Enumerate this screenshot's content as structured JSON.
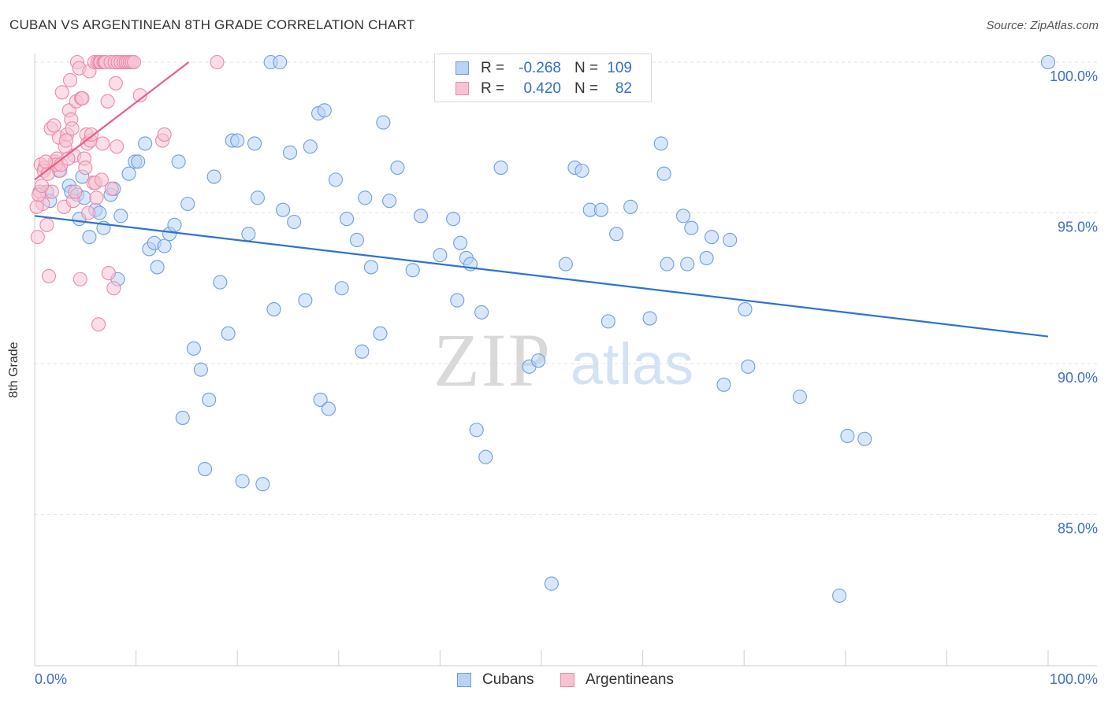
{
  "title": "CUBAN VS ARGENTINEAN 8TH GRADE CORRELATION CHART",
  "source": "Source: ZipAtlas.com",
  "watermark": {
    "zip": "ZIP",
    "atlas": "atlas"
  },
  "legend_box": {
    "rows": [
      {
        "r_label": "R =",
        "r_value": "-0.268",
        "n_label": "N =",
        "n_value": "109",
        "fill": "#b9d3f5",
        "stroke": "#6d9fe0"
      },
      {
        "r_label": "R =",
        "r_value": "0.420",
        "n_label": "N =",
        "n_value": "82",
        "fill": "#f7c3d3",
        "stroke": "#ec8aa7"
      }
    ]
  },
  "bottom_legend": [
    {
      "label": "Cubans",
      "fill": "#b9d3f5",
      "stroke": "#6d9fe0"
    },
    {
      "label": "Argentineans",
      "fill": "#f7c3d3",
      "stroke": "#ec8aa7"
    }
  ],
  "chart_data": {
    "type": "scatter",
    "title": "CUBAN VS ARGENTINEAN 8TH GRADE CORRELATION CHART",
    "xlabel": "",
    "ylabel": "8th Grade",
    "xlim": [
      0,
      100
    ],
    "ylim": [
      80.5,
      100.9
    ],
    "x_tick_labels": [
      "0.0%",
      "100.0%"
    ],
    "y_ticks": [
      100,
      95,
      90,
      85
    ],
    "y_tick_labels": [
      "100.0%",
      "95.0%",
      "90.0%",
      "85.0%"
    ],
    "grid": true,
    "colors": {
      "blue": "#3a7bd5",
      "pink": "#e8608a",
      "tick_text": "#3a6fc7"
    },
    "series": [
      {
        "name": "Cubans",
        "color": "#6d9fe0",
        "fill": "#b9d3f5",
        "trend_color": "#2e72d2",
        "trend": [
          [
            0,
            94.9
          ],
          [
            100,
            90.9
          ]
        ],
        "points": [
          [
            0.5,
            95.7
          ],
          [
            1.2,
            95.7
          ],
          [
            1.5,
            95.4
          ],
          [
            2.4,
            96.4
          ],
          [
            3.4,
            95.9
          ],
          [
            3.6,
            95.7
          ],
          [
            4.2,
            95.6
          ],
          [
            4.4,
            94.8
          ],
          [
            4.7,
            96.2
          ],
          [
            4.9,
            95.5
          ],
          [
            5.4,
            94.2
          ],
          [
            6.0,
            95.1
          ],
          [
            6.4,
            95.0
          ],
          [
            6.8,
            94.5
          ],
          [
            7.5,
            95.6
          ],
          [
            7.8,
            95.8
          ],
          [
            8.2,
            92.8
          ],
          [
            8.5,
            94.9
          ],
          [
            9.3,
            96.3
          ],
          [
            9.9,
            96.7
          ],
          [
            10.2,
            96.7
          ],
          [
            10.9,
            97.3
          ],
          [
            11.3,
            93.8
          ],
          [
            11.8,
            94.0
          ],
          [
            12.1,
            93.2
          ],
          [
            12.8,
            93.9
          ],
          [
            13.3,
            94.3
          ],
          [
            13.8,
            94.6
          ],
          [
            14.2,
            96.7
          ],
          [
            14.6,
            88.2
          ],
          [
            15.1,
            95.3
          ],
          [
            15.7,
            90.5
          ],
          [
            16.4,
            89.8
          ],
          [
            16.8,
            86.5
          ],
          [
            17.2,
            88.8
          ],
          [
            17.7,
            96.2
          ],
          [
            18.3,
            92.7
          ],
          [
            19.1,
            91.0
          ],
          [
            19.5,
            97.4
          ],
          [
            20.0,
            97.4
          ],
          [
            20.5,
            86.1
          ],
          [
            21.1,
            94.3
          ],
          [
            21.7,
            97.3
          ],
          [
            22.0,
            95.5
          ],
          [
            22.5,
            86.0
          ],
          [
            23.3,
            100.0
          ],
          [
            23.6,
            91.8
          ],
          [
            24.2,
            100.0
          ],
          [
            24.5,
            95.1
          ],
          [
            25.2,
            97.0
          ],
          [
            25.6,
            94.7
          ],
          [
            26.7,
            92.1
          ],
          [
            27.2,
            97.2
          ],
          [
            28.0,
            98.3
          ],
          [
            28.2,
            88.8
          ],
          [
            28.6,
            98.4
          ],
          [
            29.0,
            88.5
          ],
          [
            29.7,
            96.1
          ],
          [
            30.3,
            92.5
          ],
          [
            30.8,
            94.8
          ],
          [
            31.8,
            94.1
          ],
          [
            32.3,
            90.4
          ],
          [
            32.6,
            95.5
          ],
          [
            33.2,
            93.2
          ],
          [
            34.1,
            91.0
          ],
          [
            34.4,
            98.0
          ],
          [
            35.0,
            95.4
          ],
          [
            35.8,
            96.5
          ],
          [
            37.3,
            93.1
          ],
          [
            38.1,
            94.9
          ],
          [
            40.0,
            93.6
          ],
          [
            41.3,
            94.8
          ],
          [
            41.7,
            92.1
          ],
          [
            42.0,
            94.0
          ],
          [
            42.6,
            93.5
          ],
          [
            43.0,
            93.3
          ],
          [
            43.6,
            87.8
          ],
          [
            44.1,
            91.7
          ],
          [
            44.5,
            86.9
          ],
          [
            46.0,
            96.5
          ],
          [
            48.8,
            89.9
          ],
          [
            49.7,
            90.1
          ],
          [
            51.0,
            82.7
          ],
          [
            52.4,
            93.3
          ],
          [
            53.3,
            96.5
          ],
          [
            54.0,
            96.4
          ],
          [
            54.8,
            95.1
          ],
          [
            55.9,
            95.1
          ],
          [
            56.6,
            91.4
          ],
          [
            57.4,
            94.3
          ],
          [
            58.8,
            95.2
          ],
          [
            60.7,
            91.5
          ],
          [
            61.8,
            97.3
          ],
          [
            62.1,
            96.3
          ],
          [
            62.4,
            93.3
          ],
          [
            64.0,
            94.9
          ],
          [
            64.4,
            93.3
          ],
          [
            64.8,
            94.5
          ],
          [
            66.3,
            93.5
          ],
          [
            66.8,
            94.2
          ],
          [
            68.0,
            89.3
          ],
          [
            68.6,
            94.1
          ],
          [
            70.1,
            91.8
          ],
          [
            70.4,
            89.9
          ],
          [
            75.5,
            88.9
          ],
          [
            79.4,
            82.3
          ],
          [
            80.2,
            87.6
          ],
          [
            81.9,
            87.5
          ],
          [
            100.0,
            100.0
          ]
        ]
      },
      {
        "name": "Argentineans",
        "color": "#ec8aa7",
        "fill": "#f7c3d3",
        "trend_color": "#e8608a",
        "trend": [
          [
            0,
            96.1
          ],
          [
            15.2,
            100.0
          ]
        ],
        "points": [
          [
            0.3,
            94.2
          ],
          [
            0.5,
            95.7
          ],
          [
            0.6,
            96.6
          ],
          [
            0.8,
            95.3
          ],
          [
            1.0,
            96.5
          ],
          [
            1.2,
            94.6
          ],
          [
            1.4,
            92.9
          ],
          [
            1.6,
            97.8
          ],
          [
            1.7,
            95.7
          ],
          [
            1.9,
            97.9
          ],
          [
            2.0,
            96.7
          ],
          [
            2.2,
            96.8
          ],
          [
            2.4,
            97.5
          ],
          [
            2.5,
            96.4
          ],
          [
            2.7,
            99.0
          ],
          [
            2.9,
            95.2
          ],
          [
            3.0,
            97.2
          ],
          [
            3.2,
            97.6
          ],
          [
            3.4,
            98.4
          ],
          [
            3.5,
            99.4
          ],
          [
            3.6,
            98.1
          ],
          [
            3.7,
            97.8
          ],
          [
            3.8,
            95.4
          ],
          [
            3.9,
            96.9
          ],
          [
            4.1,
            98.7
          ],
          [
            4.2,
            100.0
          ],
          [
            4.4,
            99.8
          ],
          [
            4.5,
            92.8
          ],
          [
            4.6,
            98.8
          ],
          [
            4.7,
            98.8
          ],
          [
            4.9,
            96.8
          ],
          [
            5.0,
            96.5
          ],
          [
            5.1,
            97.6
          ],
          [
            5.2,
            97.3
          ],
          [
            5.4,
            99.7
          ],
          [
            5.5,
            97.4
          ],
          [
            5.6,
            97.6
          ],
          [
            5.8,
            96.0
          ],
          [
            5.9,
            100.0
          ],
          [
            6.0,
            96.0
          ],
          [
            6.1,
            95.5
          ],
          [
            6.2,
            100.0
          ],
          [
            6.3,
            91.3
          ],
          [
            6.4,
            100.0
          ],
          [
            6.5,
            100.0
          ],
          [
            6.6,
            96.1
          ],
          [
            6.7,
            97.3
          ],
          [
            6.8,
            100.0
          ],
          [
            6.9,
            100.0
          ],
          [
            7.0,
            100.0
          ],
          [
            7.2,
            98.7
          ],
          [
            7.3,
            93.0
          ],
          [
            7.5,
            100.0
          ],
          [
            7.6,
            95.8
          ],
          [
            7.8,
            92.5
          ],
          [
            7.9,
            100.0
          ],
          [
            8.0,
            99.3
          ],
          [
            8.1,
            97.2
          ],
          [
            8.2,
            100.0
          ],
          [
            8.5,
            100.0
          ],
          [
            8.8,
            100.0
          ],
          [
            9.0,
            100.0
          ],
          [
            9.2,
            100.0
          ],
          [
            9.4,
            100.0
          ],
          [
            9.6,
            100.0
          ],
          [
            9.8,
            100.0
          ],
          [
            10.4,
            98.9
          ],
          [
            12.6,
            97.4
          ],
          [
            12.8,
            97.6
          ],
          [
            18.0,
            100.0
          ],
          [
            0.2,
            95.2
          ],
          [
            0.4,
            95.6
          ],
          [
            0.9,
            96.4
          ],
          [
            1.3,
            96.3
          ],
          [
            2.1,
            96.6
          ],
          [
            2.6,
            96.6
          ],
          [
            3.3,
            96.8
          ],
          [
            4.0,
            95.7
          ],
          [
            5.3,
            95.0
          ],
          [
            1.1,
            96.7
          ],
          [
            0.7,
            95.9
          ],
          [
            3.1,
            97.4
          ]
        ]
      }
    ]
  }
}
